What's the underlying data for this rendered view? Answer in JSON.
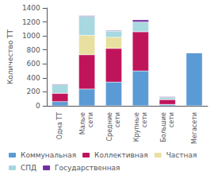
{
  "chart_data": {
    "type": "bar",
    "stacked": true,
    "grid": false,
    "legend": "bottom",
    "categories": [
      "Одна ТТ",
      "Малые\nсети",
      "Средние\nсети",
      "Крупные\nсети",
      "Большие\nсети",
      "Мегасети"
    ],
    "ylabel": "Количество ТТ",
    "ylim": [
      0,
      1400
    ],
    "yticks": [
      0,
      200,
      400,
      600,
      800,
      1000,
      1200,
      1400
    ],
    "series": [
      {
        "name": "Коммунальная",
        "color": "#5B9BD5",
        "values": [
          60,
          240,
          340,
          500,
          20,
          760
        ]
      },
      {
        "name": "Коллективная",
        "color": "#C0145A",
        "values": [
          120,
          490,
          480,
          560,
          70,
          0
        ]
      },
      {
        "name": "Частная",
        "color": "#E8E0A0",
        "values": [
          0,
          280,
          160,
          0,
          0,
          0
        ]
      },
      {
        "name": "СПД",
        "color": "#A8D8E0",
        "values": [
          120,
          270,
          90,
          140,
          30,
          0
        ]
      },
      {
        "name": "Государственная",
        "color": "#7030A0",
        "values": [
          10,
          10,
          10,
          30,
          10,
          0
        ]
      }
    ]
  }
}
